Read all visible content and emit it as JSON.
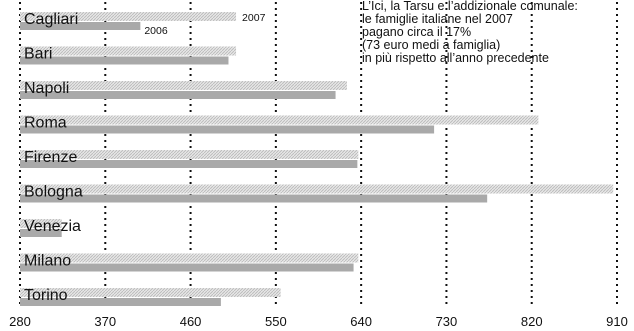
{
  "chart_data": {
    "type": "bar",
    "annotation": "L’Ici, la Tarsu e l’addizionale comunale:\nle famiglie italiane nel 2007\npagano circa il 17%\n(73 euro medi a famiglia)\nin più rispetto all’anno precedente",
    "categories": [
      "Cagliari",
      "Bari",
      "Napoli",
      "Roma",
      "Firenze",
      "Bologna",
      "Venezia",
      "Milano",
      "Torino"
    ],
    "series": [
      {
        "name": "2007",
        "values": [
          508,
          508,
          625,
          827,
          637,
          906,
          324,
          637,
          555
        ]
      },
      {
        "name": "2006",
        "values": [
          407,
          500,
          613,
          717,
          636,
          773,
          324,
          632,
          492
        ]
      }
    ],
    "x_ticks": [
      280,
      370,
      460,
      550,
      640,
      730,
      820,
      910
    ],
    "xlim": [
      280,
      910
    ],
    "grid": true,
    "colors": {
      "bar_2007": "#d9d9d9",
      "bar_2006": "#a9a9a9",
      "grid": "#111111",
      "text": "#111111"
    }
  }
}
